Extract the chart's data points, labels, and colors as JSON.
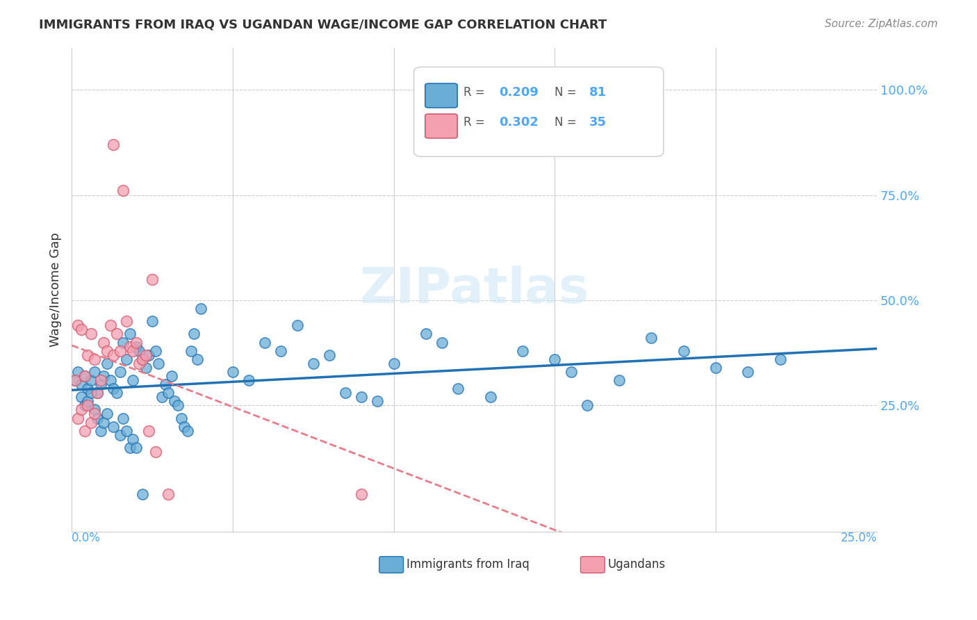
{
  "title": "IMMIGRANTS FROM IRAQ VS UGANDAN WAGE/INCOME GAP CORRELATION CHART",
  "source": "Source: ZipAtlas.com",
  "ylabel": "Wage/Income Gap",
  "legend_iraq": "Immigrants from Iraq",
  "legend_ugandan": "Ugandans",
  "iraq_color": "#6aaed6",
  "ugandan_color": "#f4a0b0",
  "iraq_line_color": "#2171b5",
  "ugandan_line_color": "#e87c8a",
  "watermark": "ZIPatlas",
  "background_color": "#ffffff",
  "iraq_points": [
    [
      0.001,
      0.31
    ],
    [
      0.002,
      0.33
    ],
    [
      0.003,
      0.3
    ],
    [
      0.004,
      0.32
    ],
    [
      0.005,
      0.29
    ],
    [
      0.006,
      0.31
    ],
    [
      0.007,
      0.33
    ],
    [
      0.008,
      0.28
    ],
    [
      0.009,
      0.3
    ],
    [
      0.01,
      0.32
    ],
    [
      0.011,
      0.35
    ],
    [
      0.012,
      0.31
    ],
    [
      0.013,
      0.29
    ],
    [
      0.014,
      0.28
    ],
    [
      0.015,
      0.33
    ],
    [
      0.016,
      0.4
    ],
    [
      0.017,
      0.36
    ],
    [
      0.018,
      0.42
    ],
    [
      0.019,
      0.31
    ],
    [
      0.02,
      0.39
    ],
    [
      0.021,
      0.38
    ],
    [
      0.022,
      0.36
    ],
    [
      0.023,
      0.34
    ],
    [
      0.024,
      0.37
    ],
    [
      0.025,
      0.45
    ],
    [
      0.026,
      0.38
    ],
    [
      0.027,
      0.35
    ],
    [
      0.028,
      0.27
    ],
    [
      0.029,
      0.3
    ],
    [
      0.03,
      0.28
    ],
    [
      0.031,
      0.32
    ],
    [
      0.032,
      0.26
    ],
    [
      0.033,
      0.25
    ],
    [
      0.034,
      0.22
    ],
    [
      0.035,
      0.2
    ],
    [
      0.036,
      0.19
    ],
    [
      0.037,
      0.38
    ],
    [
      0.038,
      0.42
    ],
    [
      0.039,
      0.36
    ],
    [
      0.04,
      0.48
    ],
    [
      0.05,
      0.33
    ],
    [
      0.055,
      0.31
    ],
    [
      0.06,
      0.4
    ],
    [
      0.065,
      0.38
    ],
    [
      0.07,
      0.44
    ],
    [
      0.075,
      0.35
    ],
    [
      0.08,
      0.37
    ],
    [
      0.085,
      0.28
    ],
    [
      0.09,
      0.27
    ],
    [
      0.095,
      0.26
    ],
    [
      0.1,
      0.35
    ],
    [
      0.11,
      0.42
    ],
    [
      0.115,
      0.4
    ],
    [
      0.12,
      0.29
    ],
    [
      0.13,
      0.27
    ],
    [
      0.14,
      0.38
    ],
    [
      0.15,
      0.36
    ],
    [
      0.155,
      0.33
    ],
    [
      0.16,
      0.25
    ],
    [
      0.17,
      0.31
    ],
    [
      0.18,
      0.41
    ],
    [
      0.19,
      0.38
    ],
    [
      0.2,
      0.34
    ],
    [
      0.21,
      0.33
    ],
    [
      0.22,
      0.36
    ],
    [
      0.003,
      0.27
    ],
    [
      0.004,
      0.25
    ],
    [
      0.005,
      0.26
    ],
    [
      0.006,
      0.28
    ],
    [
      0.007,
      0.24
    ],
    [
      0.008,
      0.22
    ],
    [
      0.009,
      0.19
    ],
    [
      0.01,
      0.21
    ],
    [
      0.011,
      0.23
    ],
    [
      0.013,
      0.2
    ],
    [
      0.015,
      0.18
    ],
    [
      0.016,
      0.22
    ],
    [
      0.017,
      0.19
    ],
    [
      0.018,
      0.15
    ],
    [
      0.019,
      0.17
    ],
    [
      0.02,
      0.15
    ],
    [
      0.022,
      0.04
    ]
  ],
  "ugandan_points": [
    [
      0.001,
      0.31
    ],
    [
      0.002,
      0.44
    ],
    [
      0.003,
      0.43
    ],
    [
      0.004,
      0.32
    ],
    [
      0.005,
      0.37
    ],
    [
      0.006,
      0.42
    ],
    [
      0.007,
      0.36
    ],
    [
      0.008,
      0.28
    ],
    [
      0.009,
      0.31
    ],
    [
      0.01,
      0.4
    ],
    [
      0.011,
      0.38
    ],
    [
      0.012,
      0.44
    ],
    [
      0.013,
      0.37
    ],
    [
      0.014,
      0.42
    ],
    [
      0.015,
      0.38
    ],
    [
      0.016,
      0.76
    ],
    [
      0.017,
      0.45
    ],
    [
      0.018,
      0.39
    ],
    [
      0.019,
      0.38
    ],
    [
      0.02,
      0.4
    ],
    [
      0.021,
      0.35
    ],
    [
      0.022,
      0.36
    ],
    [
      0.023,
      0.37
    ],
    [
      0.024,
      0.19
    ],
    [
      0.025,
      0.55
    ],
    [
      0.026,
      0.14
    ],
    [
      0.03,
      0.04
    ],
    [
      0.002,
      0.22
    ],
    [
      0.003,
      0.24
    ],
    [
      0.004,
      0.19
    ],
    [
      0.005,
      0.25
    ],
    [
      0.006,
      0.21
    ],
    [
      0.007,
      0.23
    ],
    [
      0.013,
      0.87
    ],
    [
      0.09,
      0.04
    ]
  ]
}
